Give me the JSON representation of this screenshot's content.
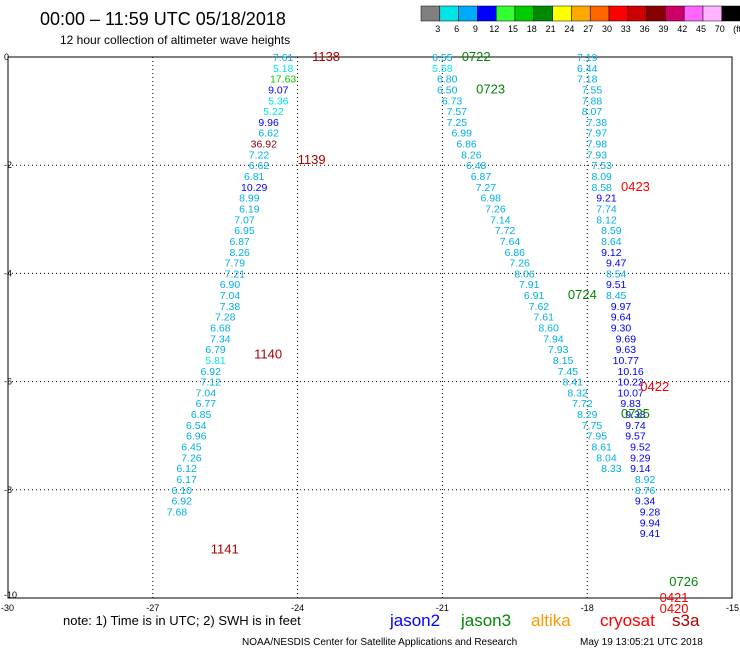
{
  "header": {
    "title": "00:00 – 11:59 UTC 05/18/2018",
    "subtitle": "12 hour collection of altimeter wave heights"
  },
  "colorbar": {
    "labels": [
      "3",
      "6",
      "9",
      "12",
      "15",
      "18",
      "21",
      "24",
      "27",
      "30",
      "33",
      "36",
      "39",
      "42",
      "45",
      "70",
      "(ft)"
    ],
    "colors": [
      "#808080",
      "#00e6e6",
      "#00aaff",
      "#0000ff",
      "#33ff33",
      "#00cc00",
      "#008800",
      "#ffff00",
      "#ffaa00",
      "#ff6600",
      "#ff0000",
      "#cc0000",
      "#880000",
      "#cc0066",
      "#ff66ff",
      "#ffb3ff",
      "#000000"
    ]
  },
  "footer": {
    "note": "note:  1) Time is in UTC;  2) SWH is in feet",
    "credit": "NOAA/NESDIS Center for Satellite Applications and Research",
    "timestamp": "May 19 13:05:21 UTC 2018",
    "legend": [
      {
        "name": "jason2",
        "color": "#0000ff"
      },
      {
        "name": "jason3",
        "color": "#008800"
      },
      {
        "name": "altika",
        "color": "#ff9900"
      },
      {
        "name": "cryosat",
        "color": "#ff0000"
      },
      {
        "name": "s3a",
        "color": "#aa0000"
      }
    ]
  },
  "chart_data": {
    "type": "scatter",
    "xlim": [
      -30,
      -15
    ],
    "ylim": [
      -10,
      0
    ],
    "x_ticks": [
      "-30",
      "-27",
      "-24",
      "-21",
      "-18",
      "-15"
    ],
    "y_ticks": [
      "0",
      "-2",
      "-4",
      "-6",
      "-8",
      "-10"
    ],
    "grid": true,
    "track_labels": [
      {
        "text": "1138",
        "x": -23.7,
        "y": 0.0,
        "color": "#aa0000"
      },
      {
        "text": "1139",
        "x": -24.0,
        "y": -1.9,
        "color": "#aa0000"
      },
      {
        "text": "1140",
        "x": -24.9,
        "y": -5.5,
        "color": "#aa0000"
      },
      {
        "text": "1141",
        "x": -25.8,
        "y": -9.1,
        "color": "#aa0000"
      },
      {
        "text": "0722",
        "x": -20.6,
        "y": 0.0,
        "color": "#008800"
      },
      {
        "text": "0723",
        "x": -20.3,
        "y": -0.6,
        "color": "#008800"
      },
      {
        "text": "0724",
        "x": -18.4,
        "y": -4.4,
        "color": "#008800"
      },
      {
        "text": "0725",
        "x": -17.3,
        "y": -6.6,
        "color": "#008800"
      },
      {
        "text": "0726",
        "x": -16.3,
        "y": -9.7,
        "color": "#008800"
      },
      {
        "text": "0423",
        "x": -17.3,
        "y": -2.4,
        "color": "#ff0000"
      },
      {
        "text": "0422",
        "x": -16.9,
        "y": -6.1,
        "color": "#ff0000"
      },
      {
        "text": "0421",
        "x": -16.5,
        "y": -10.0,
        "color": "#ff0000"
      },
      {
        "text": "0420",
        "x": -16.5,
        "y": -10.2,
        "color": "#ff0000"
      }
    ],
    "series": [
      {
        "name": "s3a",
        "color": "#00b0e0",
        "points": [
          {
            "x": -24.3,
            "y": 0.0,
            "v": "7.61",
            "c": "#00b0e0"
          },
          {
            "x": -24.3,
            "y": -0.2,
            "v": "5.18",
            "c": "#00e6e6"
          },
          {
            "x": -24.3,
            "y": -0.4,
            "v": "17.63",
            "c": "#00cc00"
          },
          {
            "x": -24.4,
            "y": -0.6,
            "v": "9.07",
            "c": "#0000ff"
          },
          {
            "x": -24.4,
            "y": -0.8,
            "v": "5.36",
            "c": "#00e6e6"
          },
          {
            "x": -24.5,
            "y": -1.0,
            "v": "5.22",
            "c": "#00e6e6"
          },
          {
            "x": -24.6,
            "y": -1.2,
            "v": "9.96",
            "c": "#0000ff"
          },
          {
            "x": -24.6,
            "y": -1.4,
            "v": "6.62",
            "c": "#00b0e0"
          },
          {
            "x": -24.7,
            "y": -1.6,
            "v": "36.92",
            "c": "#880000"
          },
          {
            "x": -24.8,
            "y": -1.8,
            "v": "7.22",
            "c": "#00b0e0"
          },
          {
            "x": -24.8,
            "y": -2.0,
            "v": "6.62",
            "c": "#00b0e0"
          },
          {
            "x": -24.9,
            "y": -2.2,
            "v": "6.81",
            "c": "#00b0e0"
          },
          {
            "x": -24.9,
            "y": -2.4,
            "v": "10.29",
            "c": "#0000ff"
          },
          {
            "x": -25.0,
            "y": -2.6,
            "v": "8.99",
            "c": "#00b0e0"
          },
          {
            "x": -25.0,
            "y": -2.8,
            "v": "6.19",
            "c": "#00b0e0"
          },
          {
            "x": -25.1,
            "y": -3.0,
            "v": "7.07",
            "c": "#00b0e0"
          },
          {
            "x": -25.1,
            "y": -3.2,
            "v": "6.95",
            "c": "#00b0e0"
          },
          {
            "x": -25.2,
            "y": -3.4,
            "v": "6.87",
            "c": "#00b0e0"
          },
          {
            "x": -25.2,
            "y": -3.6,
            "v": "8.26",
            "c": "#00b0e0"
          },
          {
            "x": -25.3,
            "y": -3.8,
            "v": "7.79",
            "c": "#00b0e0"
          },
          {
            "x": -25.3,
            "y": -4.0,
            "v": "7.21",
            "c": "#00b0e0"
          },
          {
            "x": -25.4,
            "y": -4.2,
            "v": "6.90",
            "c": "#00b0e0"
          },
          {
            "x": -25.4,
            "y": -4.4,
            "v": "7.04",
            "c": "#00b0e0"
          },
          {
            "x": -25.4,
            "y": -4.6,
            "v": "7.38",
            "c": "#00b0e0"
          },
          {
            "x": -25.5,
            "y": -4.8,
            "v": "7.28",
            "c": "#00b0e0"
          },
          {
            "x": -25.6,
            "y": -5.0,
            "v": "6.68",
            "c": "#00b0e0"
          },
          {
            "x": -25.6,
            "y": -5.2,
            "v": "7.34",
            "c": "#00b0e0"
          },
          {
            "x": -25.7,
            "y": -5.4,
            "v": "6.79",
            "c": "#00b0e0"
          },
          {
            "x": -25.7,
            "y": -5.6,
            "v": "5.81",
            "c": "#00e6e6"
          },
          {
            "x": -25.8,
            "y": -5.8,
            "v": "6.92",
            "c": "#00b0e0"
          },
          {
            "x": -25.8,
            "y": -6.0,
            "v": "7.12",
            "c": "#00b0e0"
          },
          {
            "x": -25.9,
            "y": -6.2,
            "v": "7.04",
            "c": "#00b0e0"
          },
          {
            "x": -25.9,
            "y": -6.4,
            "v": "6.77",
            "c": "#00b0e0"
          },
          {
            "x": -26.0,
            "y": -6.6,
            "v": "6.85",
            "c": "#00b0e0"
          },
          {
            "x": -26.1,
            "y": -6.8,
            "v": "6.54",
            "c": "#00b0e0"
          },
          {
            "x": -26.1,
            "y": -7.0,
            "v": "6.96",
            "c": "#00b0e0"
          },
          {
            "x": -26.2,
            "y": -7.2,
            "v": "6.45",
            "c": "#00b0e0"
          },
          {
            "x": -26.2,
            "y": -7.4,
            "v": "7.26",
            "c": "#00b0e0"
          },
          {
            "x": -26.3,
            "y": -7.6,
            "v": "6.12",
            "c": "#00b0e0"
          },
          {
            "x": -26.3,
            "y": -7.8,
            "v": "6.17",
            "c": "#00b0e0"
          },
          {
            "x": -26.4,
            "y": -8.0,
            "v": "6.10",
            "c": "#00b0e0"
          },
          {
            "x": -26.4,
            "y": -8.2,
            "v": "6.92",
            "c": "#00b0e0"
          },
          {
            "x": -26.5,
            "y": -8.4,
            "v": "7.68",
            "c": "#00b0e0"
          }
        ]
      },
      {
        "name": "jason3",
        "color": "#00b0e0",
        "points": [
          {
            "x": -21.0,
            "y": 0.0,
            "v": "6.55",
            "c": "#00b0e0"
          },
          {
            "x": -21.0,
            "y": -0.2,
            "v": "5.58",
            "c": "#00e6e6"
          },
          {
            "x": -20.9,
            "y": -0.4,
            "v": "6.80",
            "c": "#00b0e0"
          },
          {
            "x": -20.9,
            "y": -0.6,
            "v": "6.50",
            "c": "#00b0e0"
          },
          {
            "x": -20.8,
            "y": -0.8,
            "v": "6.73",
            "c": "#00b0e0"
          },
          {
            "x": -20.7,
            "y": -1.0,
            "v": "7.57",
            "c": "#00b0e0"
          },
          {
            "x": -20.7,
            "y": -1.2,
            "v": "7.25",
            "c": "#00b0e0"
          },
          {
            "x": -20.6,
            "y": -1.4,
            "v": "6.99",
            "c": "#00b0e0"
          },
          {
            "x": -20.5,
            "y": -1.6,
            "v": "6.86",
            "c": "#00b0e0"
          },
          {
            "x": -20.4,
            "y": -1.8,
            "v": "8.26",
            "c": "#00b0e0"
          },
          {
            "x": -20.3,
            "y": -2.0,
            "v": "6.48",
            "c": "#00b0e0"
          },
          {
            "x": -20.2,
            "y": -2.2,
            "v": "6.87",
            "c": "#00b0e0"
          },
          {
            "x": -20.1,
            "y": -2.4,
            "v": "7.27",
            "c": "#00b0e0"
          },
          {
            "x": -20.0,
            "y": -2.6,
            "v": "6.98",
            "c": "#00b0e0"
          },
          {
            "x": -19.9,
            "y": -2.8,
            "v": "7.26",
            "c": "#00b0e0"
          },
          {
            "x": -19.8,
            "y": -3.0,
            "v": "7.14",
            "c": "#00b0e0"
          },
          {
            "x": -19.7,
            "y": -3.2,
            "v": "7.72",
            "c": "#00b0e0"
          },
          {
            "x": -19.6,
            "y": -3.4,
            "v": "7.64",
            "c": "#00b0e0"
          },
          {
            "x": -19.5,
            "y": -3.6,
            "v": "6.86",
            "c": "#00b0e0"
          },
          {
            "x": -19.4,
            "y": -3.8,
            "v": "7.26",
            "c": "#00b0e0"
          },
          {
            "x": -19.3,
            "y": -4.0,
            "v": "8.06",
            "c": "#00b0e0"
          },
          {
            "x": -19.2,
            "y": -4.2,
            "v": "7.91",
            "c": "#00b0e0"
          },
          {
            "x": -19.1,
            "y": -4.4,
            "v": "6.91",
            "c": "#00b0e0"
          },
          {
            "x": -19.0,
            "y": -4.6,
            "v": "7.62",
            "c": "#00b0e0"
          },
          {
            "x": -18.9,
            "y": -4.8,
            "v": "7.61",
            "c": "#00b0e0"
          },
          {
            "x": -18.8,
            "y": -5.0,
            "v": "8.60",
            "c": "#00b0e0"
          },
          {
            "x": -18.7,
            "y": -5.2,
            "v": "7.94",
            "c": "#00b0e0"
          },
          {
            "x": -18.6,
            "y": -5.4,
            "v": "7.93",
            "c": "#00b0e0"
          },
          {
            "x": -18.5,
            "y": -5.6,
            "v": "8.15",
            "c": "#00b0e0"
          },
          {
            "x": -18.4,
            "y": -5.8,
            "v": "7.45",
            "c": "#00b0e0"
          },
          {
            "x": -18.3,
            "y": -6.0,
            "v": "8.41",
            "c": "#00b0e0"
          },
          {
            "x": -18.2,
            "y": -6.2,
            "v": "8.32",
            "c": "#00b0e0"
          },
          {
            "x": -18.1,
            "y": -6.4,
            "v": "7.72",
            "c": "#00b0e0"
          },
          {
            "x": -18.0,
            "y": -6.6,
            "v": "8.29",
            "c": "#00b0e0"
          },
          {
            "x": -17.9,
            "y": -6.8,
            "v": "7.75",
            "c": "#00b0e0"
          },
          {
            "x": -17.8,
            "y": -7.0,
            "v": "7.95",
            "c": "#00b0e0"
          },
          {
            "x": -17.7,
            "y": -7.2,
            "v": "8.61",
            "c": "#00b0e0"
          },
          {
            "x": -17.6,
            "y": -7.4,
            "v": "8.04",
            "c": "#00b0e0"
          },
          {
            "x": -17.5,
            "y": -7.6,
            "v": "8.33",
            "c": "#00b0e0"
          }
        ]
      },
      {
        "name": "cryosat",
        "color": "#0000ff",
        "points": [
          {
            "x": -18.0,
            "y": 0.0,
            "v": "7.19",
            "c": "#00b0e0"
          },
          {
            "x": -18.0,
            "y": -0.2,
            "v": "6.44",
            "c": "#00b0e0"
          },
          {
            "x": -18.0,
            "y": -0.4,
            "v": "7.18",
            "c": "#00b0e0"
          },
          {
            "x": -17.9,
            "y": -0.6,
            "v": "7.55",
            "c": "#00b0e0"
          },
          {
            "x": -17.9,
            "y": -0.8,
            "v": "7.88",
            "c": "#00b0e0"
          },
          {
            "x": -17.9,
            "y": -1.0,
            "v": "8.07",
            "c": "#00b0e0"
          },
          {
            "x": -17.8,
            "y": -1.2,
            "v": "7.38",
            "c": "#00b0e0"
          },
          {
            "x": -17.8,
            "y": -1.4,
            "v": "7.97",
            "c": "#00b0e0"
          },
          {
            "x": -17.8,
            "y": -1.6,
            "v": "7.98",
            "c": "#00b0e0"
          },
          {
            "x": -17.8,
            "y": -1.8,
            "v": "7.93",
            "c": "#00b0e0"
          },
          {
            "x": -17.7,
            "y": -2.0,
            "v": "7.53",
            "c": "#00b0e0"
          },
          {
            "x": -17.7,
            "y": -2.2,
            "v": "8.09",
            "c": "#00b0e0"
          },
          {
            "x": -17.7,
            "y": -2.4,
            "v": "8.58",
            "c": "#00b0e0"
          },
          {
            "x": -17.6,
            "y": -2.6,
            "v": "9.21",
            "c": "#0000ff"
          },
          {
            "x": -17.6,
            "y": -2.8,
            "v": "7.74",
            "c": "#00b0e0"
          },
          {
            "x": -17.6,
            "y": -3.0,
            "v": "8.12",
            "c": "#00b0e0"
          },
          {
            "x": -17.5,
            "y": -3.2,
            "v": "8.59",
            "c": "#00b0e0"
          },
          {
            "x": -17.5,
            "y": -3.4,
            "v": "8.64",
            "c": "#00b0e0"
          },
          {
            "x": -17.5,
            "y": -3.6,
            "v": "9.12",
            "c": "#0000ff"
          },
          {
            "x": -17.4,
            "y": -3.8,
            "v": "9.47",
            "c": "#0000ff"
          },
          {
            "x": -17.4,
            "y": -4.0,
            "v": "8.54",
            "c": "#00b0e0"
          },
          {
            "x": -17.4,
            "y": -4.2,
            "v": "9.51",
            "c": "#0000ff"
          },
          {
            "x": -17.4,
            "y": -4.4,
            "v": "8.45",
            "c": "#00b0e0"
          },
          {
            "x": -17.3,
            "y": -4.6,
            "v": "9.97",
            "c": "#0000ff"
          },
          {
            "x": -17.3,
            "y": -4.8,
            "v": "9.64",
            "c": "#0000ff"
          },
          {
            "x": -17.3,
            "y": -5.0,
            "v": "9.30",
            "c": "#0000ff"
          },
          {
            "x": -17.2,
            "y": -5.2,
            "v": "9.69",
            "c": "#0000ff"
          },
          {
            "x": -17.2,
            "y": -5.4,
            "v": "9.63",
            "c": "#0000ff"
          },
          {
            "x": -17.2,
            "y": -5.6,
            "v": "10.77",
            "c": "#0000ff"
          },
          {
            "x": -17.1,
            "y": -5.8,
            "v": "10.16",
            "c": "#0000ff"
          },
          {
            "x": -17.1,
            "y": -6.0,
            "v": "10.22",
            "c": "#0000ff"
          },
          {
            "x": -17.1,
            "y": -6.2,
            "v": "10.07",
            "c": "#0000ff"
          },
          {
            "x": -17.1,
            "y": -6.4,
            "v": "9.83",
            "c": "#0000ff"
          },
          {
            "x": -17.0,
            "y": -6.6,
            "v": "9.38",
            "c": "#0000ff"
          },
          {
            "x": -17.0,
            "y": -6.8,
            "v": "9.74",
            "c": "#0000ff"
          },
          {
            "x": -17.0,
            "y": -7.0,
            "v": "9.57",
            "c": "#0000ff"
          },
          {
            "x": -16.9,
            "y": -7.2,
            "v": "9.52",
            "c": "#0000ff"
          },
          {
            "x": -16.9,
            "y": -7.4,
            "v": "9.29",
            "c": "#0000ff"
          },
          {
            "x": -16.9,
            "y": -7.6,
            "v": "9.14",
            "c": "#0000ff"
          },
          {
            "x": -16.8,
            "y": -7.8,
            "v": "8.92",
            "c": "#00b0e0"
          },
          {
            "x": -16.8,
            "y": -8.0,
            "v": "8.76",
            "c": "#00b0e0"
          },
          {
            "x": -16.8,
            "y": -8.2,
            "v": "9.34",
            "c": "#0000ff"
          },
          {
            "x": -16.7,
            "y": -8.4,
            "v": "9.28",
            "c": "#0000ff"
          },
          {
            "x": -16.7,
            "y": -8.6,
            "v": "9.94",
            "c": "#0000ff"
          },
          {
            "x": -16.7,
            "y": -8.8,
            "v": "9.41",
            "c": "#0000ff"
          }
        ]
      }
    ]
  }
}
